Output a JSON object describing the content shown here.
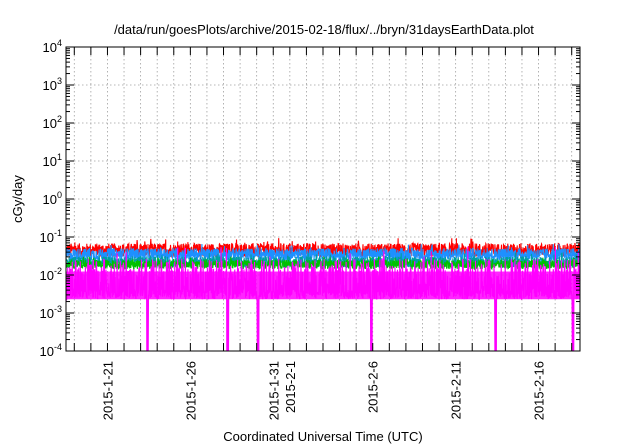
{
  "chart_data": {
    "type": "line",
    "title": "/data/run/goesPlots/archive/2015-02-18/flux/../bryn/31daysEarthData.plot",
    "xlabel": "Coordinated Universal Time (UTC)",
    "ylabel": "cGy/day",
    "yscale": "log",
    "ylim": [
      0.0001,
      10000
    ],
    "grid": true,
    "y_ticks": [
      {
        "value": 0.0001,
        "base": "10",
        "exp": "-4"
      },
      {
        "value": 0.001,
        "base": "10",
        "exp": "-3"
      },
      {
        "value": 0.01,
        "base": "10",
        "exp": "-2"
      },
      {
        "value": 0.1,
        "base": "10",
        "exp": "-1"
      },
      {
        "value": 1,
        "base": "10",
        "exp": "0"
      },
      {
        "value": 10,
        "base": "10",
        "exp": "1"
      },
      {
        "value": 100,
        "base": "10",
        "exp": "2"
      },
      {
        "value": 1000,
        "base": "10",
        "exp": "3"
      },
      {
        "value": 10000,
        "base": "10",
        "exp": "4"
      }
    ],
    "xlim": [
      "2015-01-18 12:00",
      "2015-02-18 12:00"
    ],
    "x_ticks": [
      "2015-1-21",
      "2015-1-26",
      "2015-1-31",
      "2015-2-1",
      "2015-2-6",
      "2015-2-11",
      "2015-2-16"
    ],
    "series": [
      {
        "color": "#ff0000",
        "level": 0.045,
        "spread": 0.18
      },
      {
        "color": "#1e90ff",
        "level": 0.035,
        "spread": 0.16
      },
      {
        "color": "#00a0a0",
        "level": 0.022,
        "spread": 0.14
      },
      {
        "color": "#00c000",
        "level": 0.019,
        "spread": 0.12
      },
      {
        "color": "#ff00ff",
        "level": 0.0095,
        "spread": 0.45,
        "floor": 0.0023
      }
    ],
    "dropouts": [
      "2015-01-23 10:00",
      "2015-01-28 06:00",
      "2015-01-30 02:00",
      "2015-02-05 22:00",
      "2015-02-13 10:00",
      "2015-02-18 02:00"
    ]
  }
}
